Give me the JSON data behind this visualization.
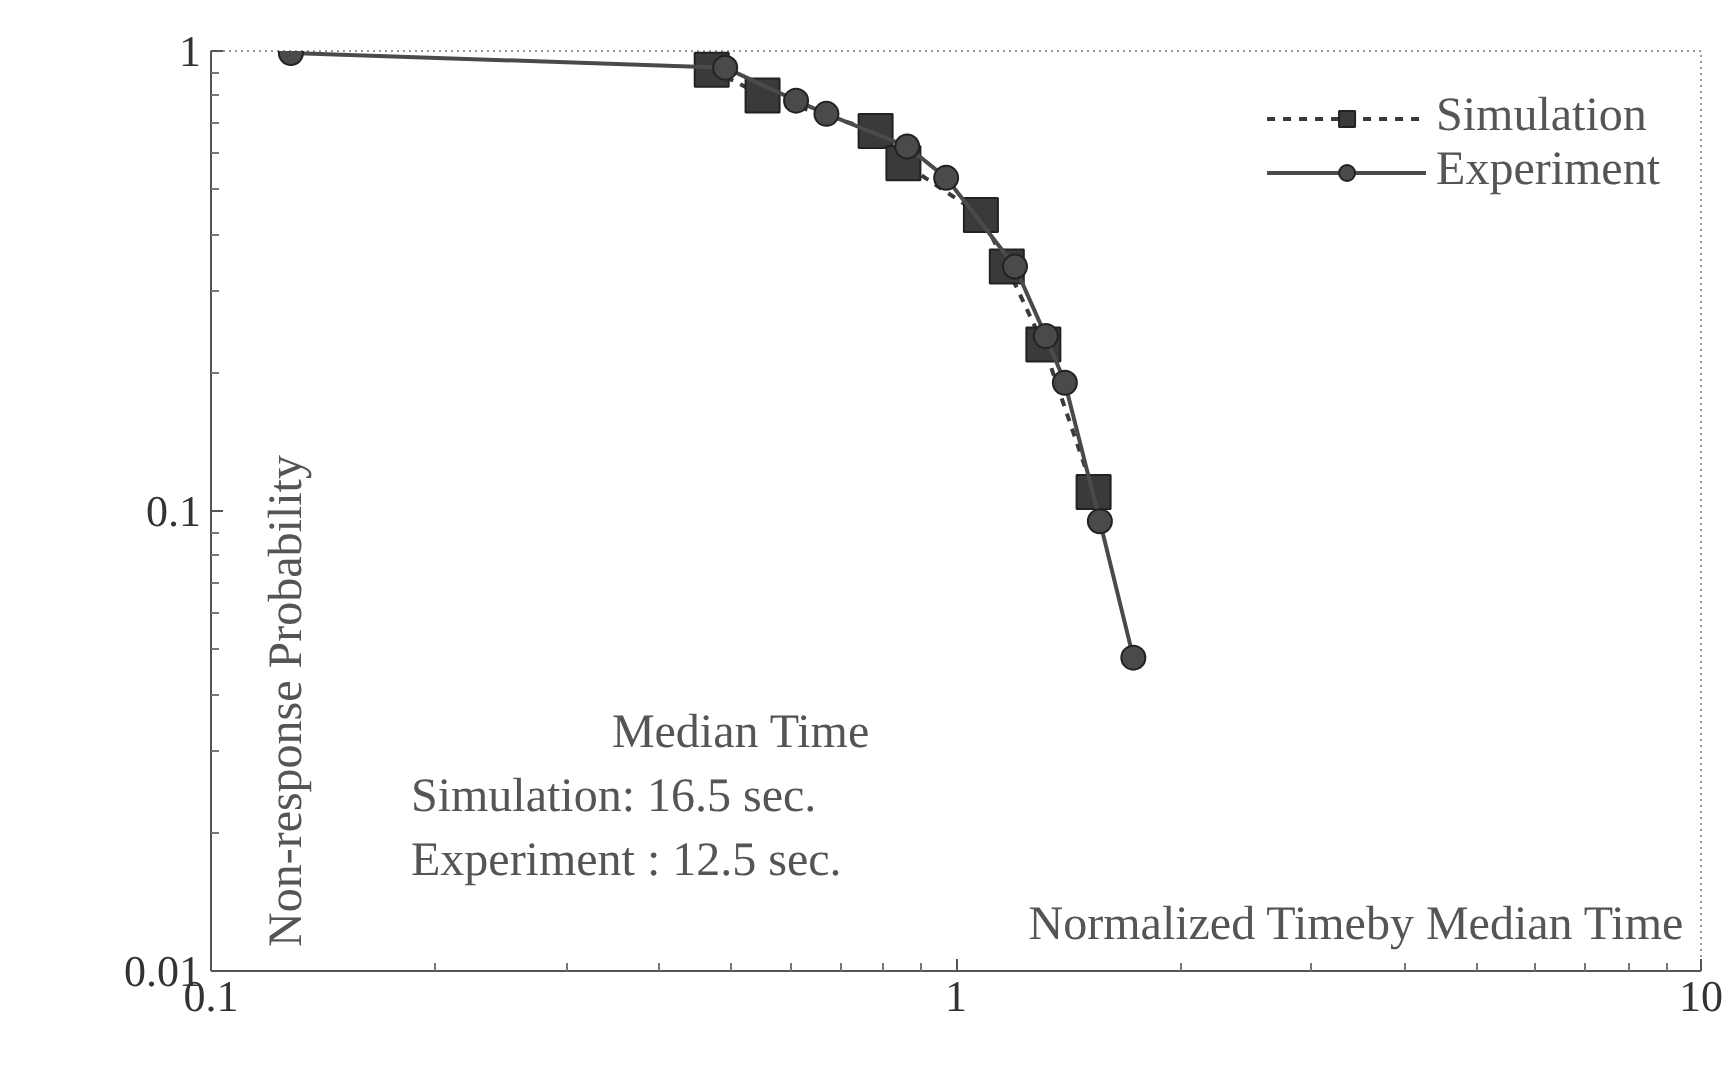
{
  "chart_data": {
    "type": "line",
    "xlabel": "Normalized Timeby Median Time",
    "ylabel": "Non-response Probability",
    "series": [
      {
        "name": "Simulation",
        "color": "#3a3a3a",
        "line_style": "dashed",
        "marker": "square",
        "x": [
          0.47,
          0.55,
          0.78,
          0.85,
          1.08,
          1.17,
          1.31,
          1.53
        ],
        "values": [
          0.91,
          0.8,
          0.67,
          0.57,
          0.44,
          0.34,
          0.23,
          0.11
        ]
      },
      {
        "name": "Experiment",
        "color": "#4a4a4a",
        "line_style": "solid",
        "marker": "circle",
        "x": [
          0.128,
          0.49,
          0.61,
          0.67,
          0.86,
          0.97,
          1.2,
          1.32,
          1.4,
          1.56,
          1.73
        ],
        "values": [
          0.99,
          0.92,
          0.78,
          0.73,
          0.62,
          0.53,
          0.34,
          0.24,
          0.19,
          0.095,
          0.048
        ]
      }
    ],
    "log": "xy",
    "xlim": [
      0.1,
      10
    ],
    "ylim": [
      0.01,
      1
    ],
    "xticks": [
      0.1,
      1,
      10
    ],
    "yticks": [
      0.01,
      0.1,
      1
    ],
    "grid": false,
    "legend": "top right",
    "annotations": [
      "Median Time",
      "Simulation: 16.5 sec.",
      "Experiment : 12.5 sec."
    ]
  }
}
